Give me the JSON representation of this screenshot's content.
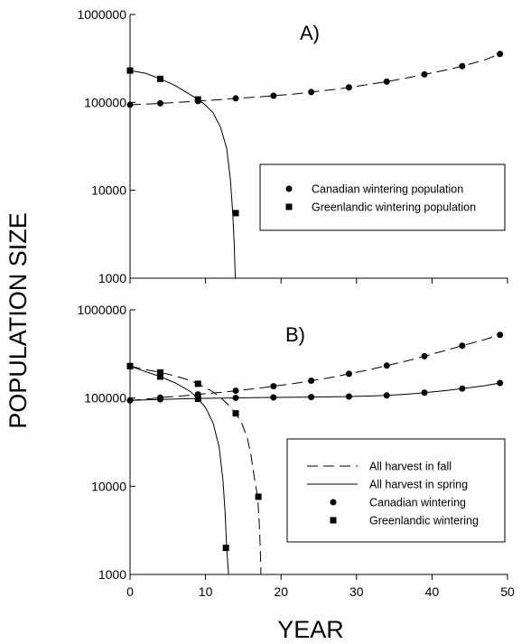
{
  "y_axis_title": "POPULATION SIZE",
  "x_axis_title": "YEAR",
  "chart_data": [
    {
      "type": "scatter",
      "panel_label": "A)",
      "xlim": [
        0,
        50
      ],
      "ylim": [
        1000,
        1000000
      ],
      "yscale": "log",
      "x_ticks": [
        0,
        10,
        20,
        30,
        40,
        50
      ],
      "x_tick_labels_shown": false,
      "y_ticks": [
        1000,
        10000,
        100000,
        1000000
      ],
      "y_tick_labels": [
        "1000",
        "10000",
        "100000",
        "1000000"
      ],
      "legend_position": "center-right",
      "legend": [
        {
          "label": "Canadian wintering population",
          "marker": "circle",
          "line": "none"
        },
        {
          "label": "Greenlandic wintering population",
          "marker": "square",
          "line": "none"
        }
      ],
      "series": [
        {
          "name": "Canadian wintering population",
          "marker": "circle",
          "line": "long-dash",
          "curve_x": [
            0,
            2,
            4,
            6,
            9,
            12,
            14,
            17,
            19,
            22,
            24,
            27,
            29,
            31,
            34,
            37,
            39,
            42,
            44,
            47,
            49
          ],
          "curve_y": [
            94000,
            95500,
            97500,
            99500,
            103500,
            107500,
            111000,
            115000,
            119000,
            125000,
            131000,
            140000,
            148000,
            157000,
            172000,
            192000,
            208000,
            235000,
            258000,
            305000,
            355000
          ],
          "marker_x": [
            0,
            4,
            9,
            14,
            19,
            24,
            29,
            34,
            39,
            44,
            49
          ],
          "marker_y": [
            94000,
            97500,
            103500,
            111000,
            119000,
            131000,
            148000,
            172000,
            208000,
            258000,
            355000
          ]
        },
        {
          "name": "Greenlandic wintering population",
          "marker": "square",
          "line": "solid",
          "curve_x": [
            0,
            2,
            4,
            6,
            8,
            9,
            10,
            11,
            12,
            12.8,
            13.3,
            13.6,
            13.8,
            13.9,
            13.95
          ],
          "curve_y": [
            230000,
            215000,
            185000,
            155000,
            122000,
            108000,
            93000,
            76000,
            52000,
            30000,
            13000,
            5500,
            2400,
            1300,
            1000
          ],
          "marker_x": [
            0,
            4,
            9,
            14
          ],
          "marker_y": [
            230000,
            185000,
            108000,
            5500
          ]
        }
      ]
    },
    {
      "type": "scatter",
      "panel_label": "B)",
      "xlim": [
        0,
        50
      ],
      "ylim": [
        1000,
        1000000
      ],
      "yscale": "log",
      "x_ticks": [
        0,
        10,
        20,
        30,
        40,
        50
      ],
      "x_tick_labels": [
        "0",
        "10",
        "20",
        "30",
        "40",
        "50"
      ],
      "y_ticks": [
        1000,
        10000,
        100000,
        1000000
      ],
      "y_tick_labels": [
        "1000",
        "10000",
        "100000",
        "1000000"
      ],
      "legend_position": "lower-right",
      "legend": [
        {
          "label": "All harvest in fall",
          "marker": "none",
          "line": "long-dash"
        },
        {
          "label": "All harvest in spring",
          "marker": "none",
          "line": "solid"
        },
        {
          "label": "Canadian wintering",
          "marker": "circle",
          "line": "none"
        },
        {
          "label": "Greenlandic wintering",
          "marker": "square",
          "line": "none"
        }
      ],
      "series": [
        {
          "name": "Canadian wintering",
          "marker": "circle",
          "line": "long-dash",
          "curve_x": [
            0,
            2,
            4,
            7,
            9,
            12,
            14,
            17,
            19,
            22,
            24,
            27,
            29,
            32,
            34,
            37,
            39,
            42,
            44,
            47,
            49
          ],
          "curve_y": [
            94000,
            97000,
            101000,
            106000,
            110000,
            116000,
            121000,
            129000,
            136000,
            147000,
            157000,
            173000,
            188000,
            212000,
            233000,
            268000,
            298000,
            350000,
            392000,
            460000,
            520000
          ],
          "marker_x": [
            0,
            4,
            9,
            14,
            19,
            24,
            29,
            34,
            39,
            44,
            49
          ],
          "marker_y": [
            94000,
            101000,
            110000,
            121000,
            136000,
            157000,
            188000,
            233000,
            298000,
            392000,
            520000
          ]
        },
        {
          "name": "Canadian wintering",
          "marker": "circle",
          "line": "solid",
          "curve_x": [
            0,
            4,
            9,
            14,
            19,
            24,
            29,
            32,
            34,
            37,
            39,
            42,
            44,
            47,
            49
          ],
          "curve_y": [
            94000,
            96500,
            99000,
            100500,
            101500,
            102500,
            104000,
            105500,
            107000,
            111000,
            115000,
            122000,
            128000,
            138000,
            148000
          ],
          "marker_x": [
            0,
            4,
            9,
            14,
            19,
            24,
            29,
            34,
            39,
            44,
            49
          ],
          "marker_y": [
            94000,
            96500,
            99000,
            100500,
            101500,
            102500,
            104000,
            107000,
            115000,
            128000,
            148000
          ]
        },
        {
          "name": "Greenlandic wintering",
          "marker": "square",
          "line": "long-dash",
          "curve_x": [
            0,
            2,
            4,
            6,
            8,
            9,
            10,
            11,
            12,
            13,
            14,
            14.8,
            15.5,
            16,
            16.5,
            16.9,
            17.1,
            17.25,
            17.35
          ],
          "curve_y": [
            230000,
            210000,
            195000,
            178000,
            158000,
            145000,
            131000,
            117000,
            101000,
            84000,
            67000,
            52000,
            36000,
            23000,
            12000,
            7600,
            4000,
            2000,
            1000
          ],
          "marker_x": [
            0,
            4,
            9,
            14,
            17
          ],
          "marker_y": [
            230000,
            195000,
            145000,
            67000,
            7600
          ]
        },
        {
          "name": "Greenlandic wintering",
          "marker": "square",
          "line": "solid",
          "curve_x": [
            0,
            2,
            4,
            6,
            8,
            9,
            10,
            11,
            11.8,
            12.3,
            12.6,
            12.8,
            12.95,
            13.05
          ],
          "curve_y": [
            230000,
            200000,
            175000,
            148000,
            118000,
            98000,
            78000,
            52000,
            28000,
            12000,
            5000,
            2000,
            1300,
            1000
          ],
          "marker_x": [
            0,
            4,
            9,
            12.7
          ],
          "marker_y": [
            230000,
            175000,
            98000,
            2000
          ]
        }
      ]
    }
  ]
}
